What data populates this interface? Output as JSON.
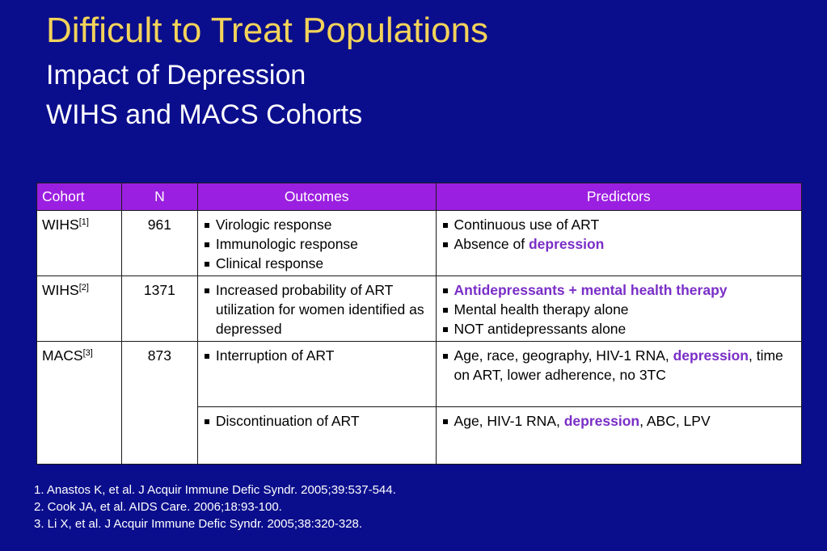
{
  "title": "Difficult to Treat Populations",
  "subtitle1": "Impact of Depression",
  "subtitle2": "WIHS and MACS Cohorts",
  "headers": {
    "cohort": "Cohort",
    "n": "N",
    "outcomes": "Outcomes",
    "predictors": "Predictors"
  },
  "rows": [
    {
      "cohort": "WIHS",
      "ref": "[1]",
      "n": "961",
      "outcomes": [
        "Virologic response",
        "Immunologic response",
        "Clinical response"
      ],
      "predictors": {
        "p1": "Continuous use of ART",
        "p2_pre": "Absence of ",
        "p2_hl": "depression"
      }
    },
    {
      "cohort": "WIHS",
      "ref": "[2]",
      "n": "1371",
      "outcomes": [
        "Increased probability of ART utilization for women identified as depressed"
      ],
      "predictors": {
        "p1_hl": "Antidepressants + mental health therapy",
        "p2": "Mental health therapy alone",
        "p3": "NOT antidepressants alone"
      }
    },
    {
      "cohort": "MACS",
      "ref": "[3]",
      "n": "873",
      "outcomes": [
        "Interruption of ART"
      ],
      "predictors": {
        "p1_pre": "Age, race, geography, HIV-1 RNA, ",
        "p1_hl": "depression",
        "p1_post": ", time on ART, lower adherence, no 3TC"
      }
    },
    {
      "outcomes": [
        "Discontinuation of ART"
      ],
      "predictors": {
        "p1_pre": "Age, HIV-1 RNA, ",
        "p1_hl": "depression",
        "p1_post": ", ABC, LPV"
      }
    }
  ],
  "references": [
    "1. Anastos K, et al. J Acquir Immune Defic Syndr. 2005;39:537-544.",
    "2. Cook JA, et al. AIDS Care. 2006;18:93-100.",
    "3. Li X, et al. J Acquir Immune Defic Syndr. 2005;38:320-328."
  ],
  "colors": {
    "background": "#0b0e8c",
    "title": "#f3d35a",
    "header": "#9b1fe0",
    "highlight": "#7a2ec7"
  }
}
